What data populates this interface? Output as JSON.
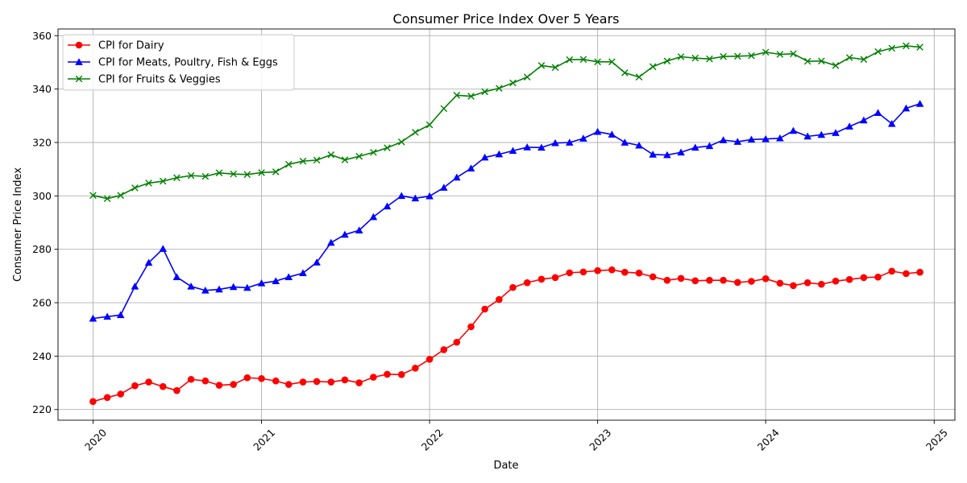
{
  "chart_data": {
    "type": "line",
    "title": "Consumer Price Index Over 5 Years",
    "xlabel": "Date",
    "ylabel": "Consumer Price Index",
    "ylim": [
      216,
      362.5
    ],
    "xlim": [
      "2019-10-17",
      "2025-02-15"
    ],
    "x_ticks": [
      "2020",
      "2021",
      "2022",
      "2023",
      "2024",
      "2025"
    ],
    "y_ticks": [
      220,
      240,
      260,
      280,
      300,
      320,
      340,
      360
    ],
    "grid": true,
    "legend_position": "top-left",
    "x": [
      "2020-01",
      "2020-02",
      "2020-03",
      "2020-04",
      "2020-05",
      "2020-06",
      "2020-07",
      "2020-08",
      "2020-09",
      "2020-10",
      "2020-11",
      "2020-12",
      "2021-01",
      "2021-02",
      "2021-03",
      "2021-04",
      "2021-05",
      "2021-06",
      "2021-07",
      "2021-08",
      "2021-09",
      "2021-10",
      "2021-11",
      "2021-12",
      "2022-01",
      "2022-02",
      "2022-03",
      "2022-04",
      "2022-05",
      "2022-06",
      "2022-07",
      "2022-08",
      "2022-09",
      "2022-10",
      "2022-11",
      "2022-12",
      "2023-01",
      "2023-02",
      "2023-03",
      "2023-04",
      "2023-05",
      "2023-06",
      "2023-07",
      "2023-08",
      "2023-09",
      "2023-10",
      "2023-11",
      "2023-12",
      "2024-01",
      "2024-02",
      "2024-03",
      "2024-04",
      "2024-05",
      "2024-06",
      "2024-07",
      "2024-08",
      "2024-09",
      "2024-10",
      "2024-11",
      "2024-12"
    ],
    "series": [
      {
        "name": "CPI for Dairy",
        "color": "#ff0000",
        "marker": "circle",
        "values": [
          223.0,
          224.5,
          225.8,
          228.9,
          230.3,
          228.6,
          227.1,
          231.3,
          230.7,
          229.1,
          229.4,
          231.9,
          231.6,
          230.7,
          229.4,
          230.3,
          230.5,
          230.3,
          231.1,
          230.0,
          232.1,
          233.2,
          233.1,
          235.5,
          238.8,
          242.4,
          245.2,
          251.0,
          257.6,
          261.2,
          265.7,
          267.5,
          268.8,
          269.4,
          271.2,
          271.5,
          272.0,
          272.3,
          271.4,
          271.1,
          269.7,
          268.4,
          269.1,
          268.2,
          268.4,
          268.4,
          267.6,
          268.0,
          269.0,
          267.3,
          266.4,
          267.5,
          266.9,
          268.1,
          268.7,
          269.4,
          269.6,
          271.8,
          270.9,
          271.4
        ]
      },
      {
        "name": "CPI for Meats, Poultry, Fish & Eggs",
        "color": "#0000ff",
        "marker": "triangle",
        "values": [
          254.1,
          254.8,
          255.4,
          266.1,
          275.0,
          280.2,
          269.6,
          266.1,
          264.6,
          265.0,
          265.9,
          265.6,
          267.3,
          268.1,
          269.6,
          271.1,
          275.1,
          282.5,
          285.5,
          287.1,
          292.1,
          296.1,
          300.0,
          299.1,
          299.9,
          303.1,
          306.9,
          310.3,
          314.4,
          315.6,
          316.9,
          318.2,
          318.1,
          319.8,
          320.0,
          321.5,
          324.0,
          323.0,
          320.0,
          318.9,
          315.5,
          315.3,
          316.3,
          318.1,
          318.7,
          320.9,
          320.3,
          321.1,
          321.3,
          321.6,
          324.4,
          322.3,
          322.9,
          323.6,
          326.0,
          328.3,
          331.1,
          327.0,
          332.8,
          334.5
        ]
      },
      {
        "name": "CPI for Fruits & Veggies",
        "color": "#008000",
        "marker": "x",
        "values": [
          300.2,
          299.0,
          300.2,
          303.0,
          304.8,
          305.5,
          306.8,
          307.6,
          307.3,
          308.6,
          308.2,
          308.0,
          308.7,
          309.0,
          311.8,
          313.0,
          313.4,
          315.4,
          313.5,
          314.8,
          316.3,
          318.0,
          320.2,
          323.8,
          326.6,
          332.7,
          337.7,
          337.3,
          339.0,
          340.3,
          342.3,
          344.5,
          348.8,
          348.1,
          351.0,
          351.1,
          350.2,
          350.2,
          346.1,
          344.5,
          348.4,
          350.5,
          352.1,
          351.6,
          351.3,
          352.2,
          352.3,
          352.5,
          353.8,
          353.0,
          353.2,
          350.4,
          350.5,
          348.8,
          351.8,
          351.1,
          354.0,
          355.3,
          356.2,
          355.7
        ]
      }
    ]
  }
}
